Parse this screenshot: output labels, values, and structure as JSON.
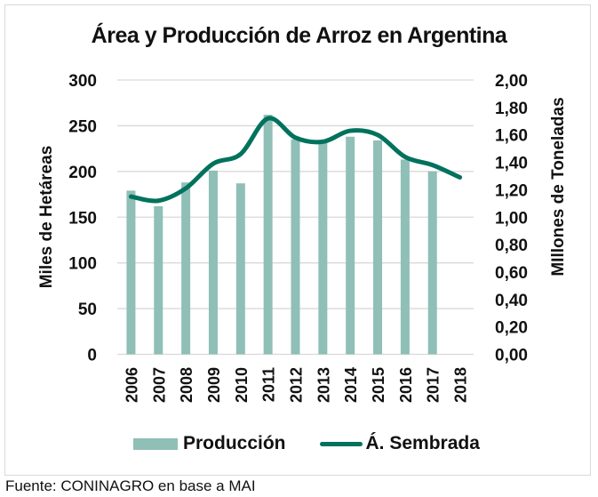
{
  "chart_data": {
    "type": "bar+line",
    "title": "Área y Producción de Arroz en Argentina",
    "categories": [
      "2006",
      "2007",
      "2008",
      "2009",
      "2010",
      "2011",
      "2012",
      "2013",
      "2014",
      "2015",
      "2016",
      "2017",
      "2018"
    ],
    "series": [
      {
        "name": "Producción",
        "type": "bar",
        "axis": "left",
        "color": "#8fbfb7",
        "values": [
          179,
          162,
          188,
          201,
          187,
          262,
          235,
          232,
          238,
          234,
          213,
          200,
          null
        ]
      },
      {
        "name": "Á. Sembrada",
        "type": "line",
        "axis": "right",
        "color": "#00725d",
        "values": [
          1.15,
          1.12,
          1.21,
          1.39,
          1.46,
          1.72,
          1.58,
          1.55,
          1.63,
          1.6,
          1.44,
          1.38,
          1.29
        ]
      }
    ],
    "ylabel_left": "Miles de Hetáreas",
    "ylabel_right": "MIllones de Toneladas",
    "ylim_left": [
      0,
      300
    ],
    "ylim_right": [
      0,
      2
    ],
    "yticks_left": [
      "0",
      "50",
      "100",
      "150",
      "200",
      "250",
      "300"
    ],
    "yticks_right": [
      "0,00",
      "0,20",
      "0,40",
      "0,60",
      "0,80",
      "1,00",
      "1,20",
      "1,40",
      "1,60",
      "1,80",
      "2,00"
    ],
    "grid": true,
    "legend_position": "bottom",
    "source": "Fuente: CONINAGRO en base a MAI"
  }
}
